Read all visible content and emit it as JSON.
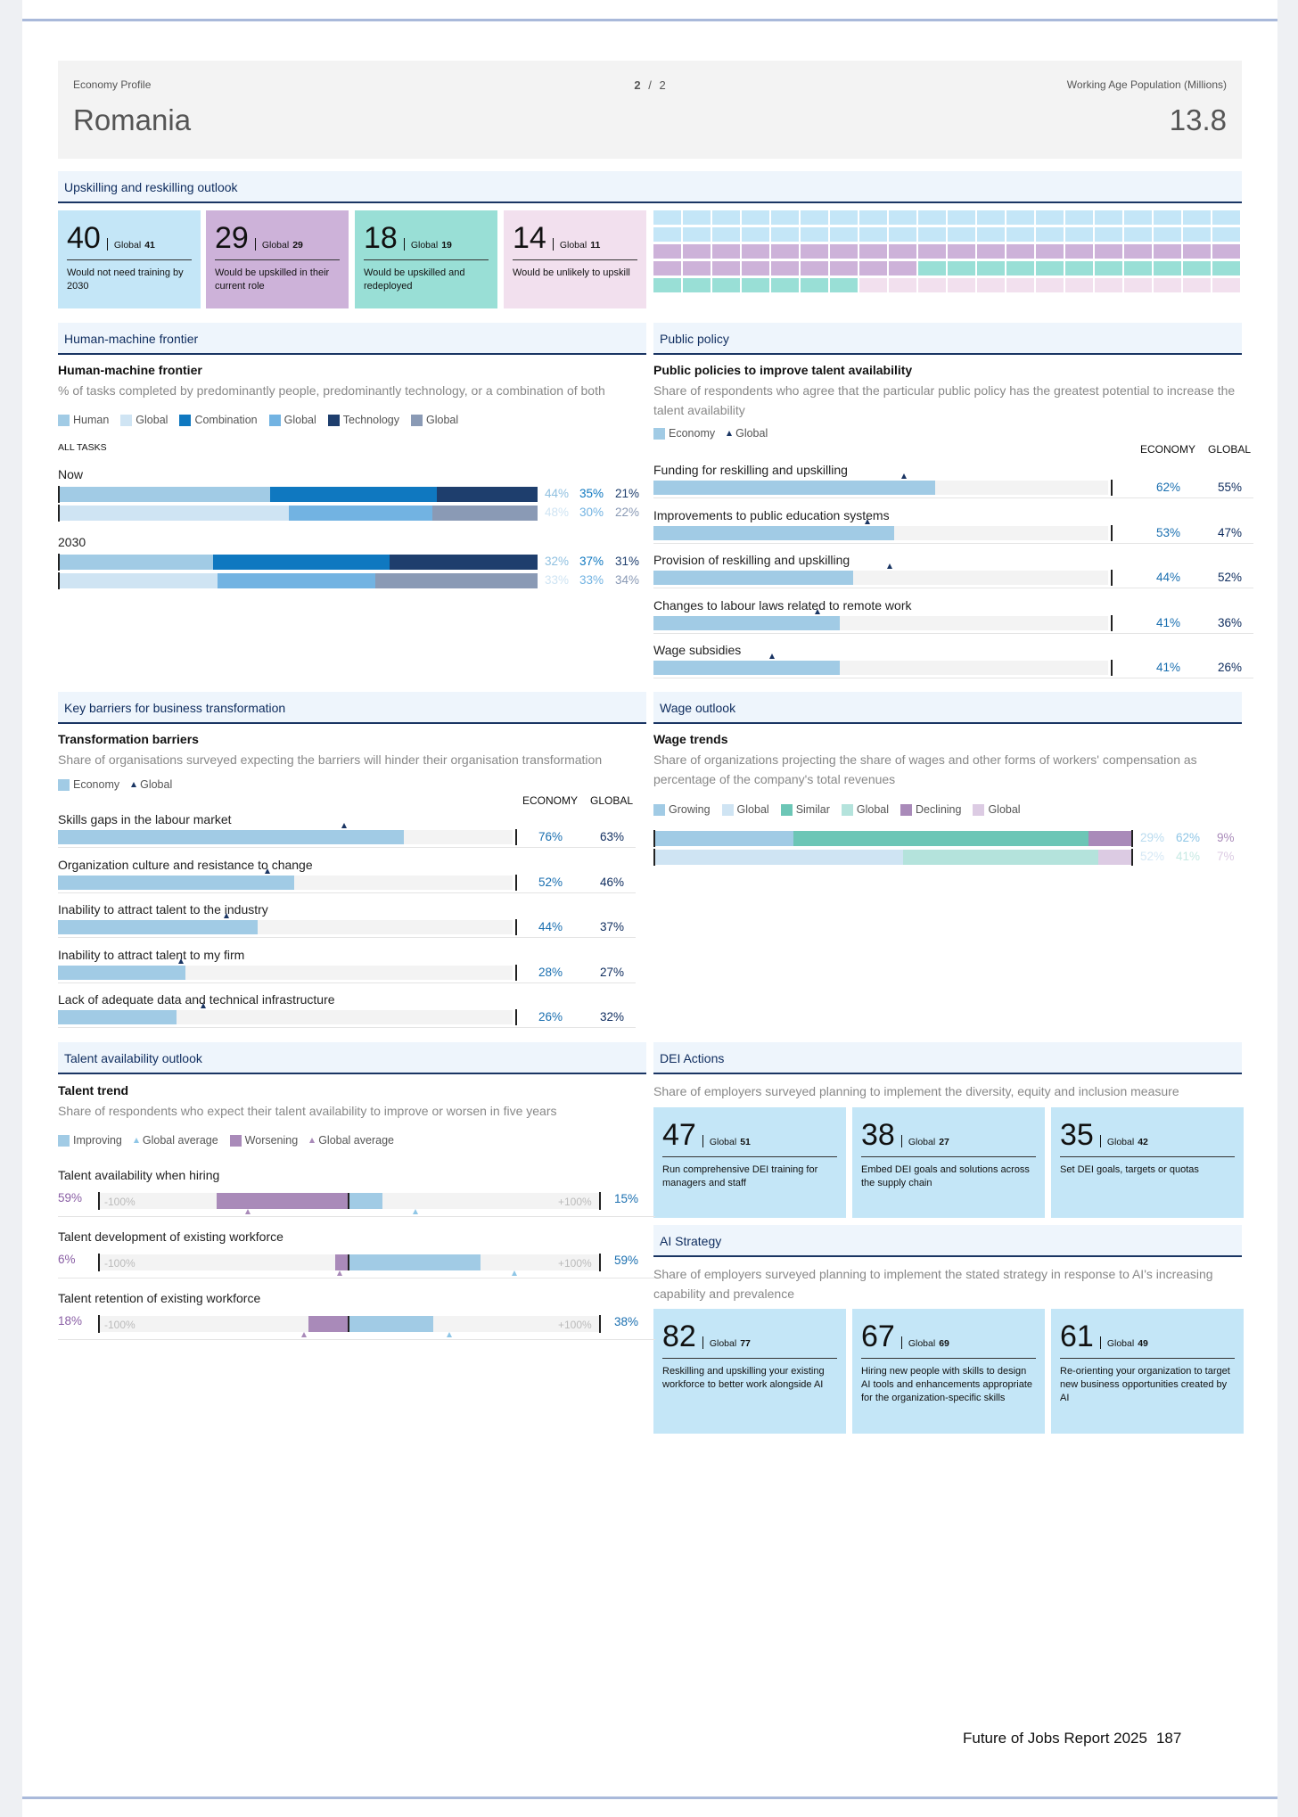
{
  "header": {
    "profile_label": "Economy Profile",
    "country": "Romania",
    "page_current": "2",
    "page_sep": "/",
    "page_total": "2",
    "pop_label": "Working Age Population (Millions)",
    "pop_value": "13.8"
  },
  "upskilling": {
    "title": "Upskilling and reskilling outlook",
    "tiles": [
      {
        "value": "40",
        "global_label": "Global",
        "global_value": "41",
        "desc": "Would not need training by 2030",
        "color": "#c4e6f7"
      },
      {
        "value": "29",
        "global_label": "Global",
        "global_value": "29",
        "desc": "Would be upskilled in their current role",
        "color": "#cdb2d9"
      },
      {
        "value": "18",
        "global_label": "Global",
        "global_value": "19",
        "desc": "Would be upskilled and redeployed",
        "color": "#99dfd6"
      },
      {
        "value": "14",
        "global_label": "Global",
        "global_value": "11",
        "desc": "Would be unlikely to upskill",
        "color": "#f2e0ee"
      }
    ]
  },
  "hmf": {
    "section": "Human-machine frontier",
    "title": "Human-machine frontier",
    "subtitle": "% of tasks completed by predominantly people, predominantly technology, or a combination of both",
    "legend": [
      {
        "label": "Human",
        "color": "#a1cbe5"
      },
      {
        "label": "Global",
        "color": "#cfe4f3"
      },
      {
        "label": "Combination",
        "color": "#0f78c0"
      },
      {
        "label": "Global",
        "color": "#72b3e2"
      },
      {
        "label": "Technology",
        "color": "#1e3e6d"
      },
      {
        "label": "Global",
        "color": "#8a9ab5"
      }
    ],
    "all_tasks": "ALL TASKS",
    "groups": [
      {
        "label": "Now",
        "economy": {
          "values": [
            44,
            35,
            21
          ],
          "labels": [
            "44%",
            "35%",
            "21%"
          ]
        },
        "global": {
          "values": [
            48,
            30,
            22
          ],
          "labels": [
            "48%",
            "30%",
            "22%"
          ]
        }
      },
      {
        "label": "2030",
        "economy": {
          "values": [
            32,
            37,
            31
          ],
          "labels": [
            "32%",
            "37%",
            "31%"
          ]
        },
        "global": {
          "values": [
            33,
            33,
            34
          ],
          "labels": [
            "33%",
            "33%",
            "34%"
          ]
        }
      }
    ]
  },
  "policy": {
    "section": "Public policy",
    "title": "Public policies to improve talent availability",
    "subtitle": "Share of respondents who agree that the particular public policy has the greatest potential to increase the talent availability",
    "legend_economy": "Economy",
    "legend_global": "Global",
    "col_economy": "ECONOMY",
    "col_global": "GLOBAL",
    "items": [
      {
        "label": "Funding for reskilling and upskilling",
        "economy": 62,
        "global": 55,
        "economy_label": "62%",
        "global_label": "55%"
      },
      {
        "label": "Improvements to public education systems",
        "economy": 53,
        "global": 47,
        "economy_label": "53%",
        "global_label": "47%"
      },
      {
        "label": "Provision of reskilling and upskilling",
        "economy": 44,
        "global": 52,
        "economy_label": "44%",
        "global_label": "52%"
      },
      {
        "label": "Changes to labour laws related to remote work",
        "economy": 41,
        "global": 36,
        "economy_label": "41%",
        "global_label": "36%"
      },
      {
        "label": "Wage subsidies",
        "economy": 41,
        "global": 26,
        "economy_label": "41%",
        "global_label": "26%"
      }
    ]
  },
  "barriers": {
    "section": "Key barriers for business transformation",
    "title": "Transformation barriers",
    "subtitle": "Share of organisations surveyed expecting the barriers will hinder their organisation transformation",
    "legend_economy": "Economy",
    "legend_global": "Global",
    "col_economy": "ECONOMY",
    "col_global": "GLOBAL",
    "items": [
      {
        "label": "Skills gaps in the labour market",
        "economy": 76,
        "global": 63,
        "economy_label": "76%",
        "global_label": "63%"
      },
      {
        "label": "Organization culture and resistance to change",
        "economy": 52,
        "global": 46,
        "economy_label": "52%",
        "global_label": "46%"
      },
      {
        "label": "Inability to attract talent to the industry",
        "economy": 44,
        "global": 37,
        "economy_label": "44%",
        "global_label": "37%"
      },
      {
        "label": "Inability to attract talent to my firm",
        "economy": 28,
        "global": 27,
        "economy_label": "28%",
        "global_label": "27%"
      },
      {
        "label": "Lack of adequate data and technical infrastructure",
        "economy": 26,
        "global": 32,
        "economy_label": "26%",
        "global_label": "32%"
      }
    ]
  },
  "wage": {
    "section": "Wage outlook",
    "title": "Wage trends",
    "subtitle": "Share of organizations projecting the share of wages and other forms of workers' compensation as percentage of the company's total revenues",
    "legend": [
      {
        "label": "Growing",
        "color": "#a1cbe5"
      },
      {
        "label": "Global",
        "color": "#cfe4f3"
      },
      {
        "label": "Similar",
        "color": "#6cc6b6"
      },
      {
        "label": "Global",
        "color": "#b4e3dc"
      },
      {
        "label": "Declining",
        "color": "#a98ab9"
      },
      {
        "label": "Global",
        "color": "#dccbe3"
      }
    ],
    "economy": {
      "values": [
        29,
        62,
        9
      ],
      "labels": [
        "29%",
        "62%",
        "9%"
      ]
    },
    "global": {
      "values": [
        52,
        41,
        7
      ],
      "labels": [
        "52%",
        "41%",
        "7%"
      ]
    }
  },
  "talent": {
    "section": "Talent availability outlook",
    "title": "Talent trend",
    "subtitle": "Share of respondents who expect their talent availability to improve or worsen in five years",
    "legend": {
      "improving": "Improving",
      "global_avg": "Global average",
      "worsening": "Worsening"
    },
    "min_label": "-100%",
    "max_label": "+100%",
    "items": [
      {
        "label": "Talent availability when hiring",
        "worsen": 59,
        "improve": 15,
        "worsen_label": "59%",
        "improve_label": "15%",
        "global_worsen": 45,
        "global_improve": 30
      },
      {
        "label": "Talent development of existing workforce",
        "worsen": 6,
        "improve": 59,
        "worsen_label": "6%",
        "improve_label": "59%",
        "global_worsen": 4,
        "global_improve": 74
      },
      {
        "label": "Talent retention of existing workforce",
        "worsen": 18,
        "improve": 38,
        "worsen_label": "18%",
        "improve_label": "38%",
        "global_worsen": 20,
        "global_improve": 45
      }
    ]
  },
  "dei": {
    "section": "DEI Actions",
    "subtitle": "Share of employers surveyed planning to implement the diversity, equity and inclusion measure",
    "tiles": [
      {
        "value": "47",
        "global_label": "Global",
        "global_value": "51",
        "desc": "Run comprehensive DEI training for managers and staff"
      },
      {
        "value": "38",
        "global_label": "Global",
        "global_value": "27",
        "desc": "Embed DEI goals and solutions across the supply chain"
      },
      {
        "value": "35",
        "global_label": "Global",
        "global_value": "42",
        "desc": "Set DEI goals, targets or quotas"
      }
    ]
  },
  "ai": {
    "section": "AI Strategy",
    "subtitle": "Share of employers surveyed planning to implement the stated strategy in response to AI's increasing capability and prevalence",
    "tiles": [
      {
        "value": "82",
        "global_label": "Global",
        "global_value": "77",
        "desc": "Reskilling and upskilling your existing workforce to better work alongside AI"
      },
      {
        "value": "67",
        "global_label": "Global",
        "global_value": "69",
        "desc": "Hiring new people with skills to design AI tools and enhancements appropriate for the organization-specific skills"
      },
      {
        "value": "61",
        "global_label": "Global",
        "global_value": "49",
        "desc": "Re-orienting your organization to target new business opportunities created by AI"
      }
    ]
  },
  "footer": {
    "title": "Future of Jobs Report 2025",
    "page": "187"
  }
}
